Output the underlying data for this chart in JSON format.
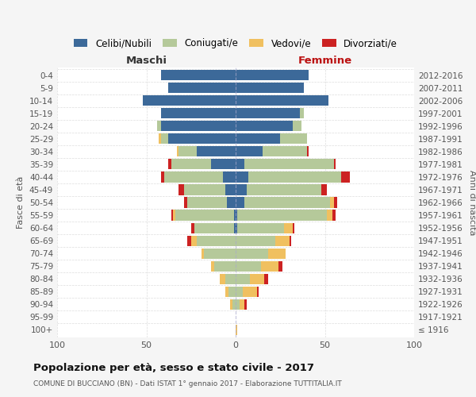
{
  "age_groups": [
    "100+",
    "95-99",
    "90-94",
    "85-89",
    "80-84",
    "75-79",
    "70-74",
    "65-69",
    "60-64",
    "55-59",
    "50-54",
    "45-49",
    "40-44",
    "35-39",
    "30-34",
    "25-29",
    "20-24",
    "15-19",
    "10-14",
    "5-9",
    "0-4"
  ],
  "birth_years": [
    "≤ 1916",
    "1917-1921",
    "1922-1926",
    "1927-1931",
    "1932-1936",
    "1937-1941",
    "1942-1946",
    "1947-1951",
    "1952-1956",
    "1957-1961",
    "1962-1966",
    "1967-1971",
    "1972-1976",
    "1977-1981",
    "1982-1986",
    "1987-1991",
    "1992-1996",
    "1997-2001",
    "2002-2006",
    "2007-2011",
    "2012-2016"
  ],
  "male_celibe": [
    0,
    0,
    0,
    0,
    0,
    0,
    0,
    0,
    1,
    1,
    5,
    6,
    7,
    14,
    22,
    38,
    42,
    42,
    52,
    38,
    42
  ],
  "male_coniugato": [
    0,
    0,
    2,
    4,
    6,
    12,
    18,
    22,
    22,
    33,
    22,
    23,
    33,
    22,
    10,
    4,
    2,
    0,
    0,
    0,
    0
  ],
  "male_vedovo": [
    0,
    0,
    1,
    2,
    3,
    2,
    1,
    3,
    0,
    1,
    0,
    0,
    0,
    0,
    1,
    1,
    0,
    0,
    0,
    0,
    0
  ],
  "male_divorziato": [
    0,
    0,
    0,
    0,
    0,
    0,
    0,
    2,
    2,
    1,
    2,
    3,
    2,
    2,
    0,
    0,
    0,
    0,
    0,
    0,
    0
  ],
  "female_nubile": [
    0,
    0,
    0,
    0,
    0,
    0,
    0,
    0,
    1,
    1,
    5,
    6,
    7,
    5,
    15,
    25,
    32,
    36,
    52,
    38,
    41
  ],
  "female_coniugata": [
    0,
    0,
    2,
    4,
    8,
    14,
    18,
    22,
    26,
    50,
    48,
    42,
    52,
    50,
    25,
    15,
    5,
    2,
    0,
    0,
    0
  ],
  "female_vedova": [
    1,
    0,
    3,
    8,
    8,
    10,
    10,
    8,
    5,
    3,
    2,
    0,
    0,
    0,
    0,
    0,
    0,
    0,
    0,
    0,
    0
  ],
  "female_divorziata": [
    0,
    0,
    1,
    1,
    2,
    2,
    0,
    1,
    1,
    2,
    2,
    3,
    5,
    1,
    1,
    0,
    0,
    0,
    0,
    0,
    0
  ],
  "color_celibe": "#3c6999",
  "color_coniugato": "#b5c99a",
  "color_vedovo": "#f0c060",
  "color_divorziato": "#cc2222",
  "xlim": 100,
  "title": "Popolazione per età, sesso e stato civile - 2017",
  "subtitle": "COMUNE DI BUCCIANO (BN) - Dati ISTAT 1° gennaio 2017 - Elaborazione TUTTITALIA.IT",
  "label_maschi": "Maschi",
  "label_femmine": "Femmine",
  "ylabel_left": "Fasce di età",
  "ylabel_right": "Anni di nascita",
  "legend_labels": [
    "Celibi/Nubili",
    "Coniugati/e",
    "Vedovi/e",
    "Divorziati/e"
  ],
  "bg_color": "#f5f5f5",
  "plot_bg": "#ffffff"
}
